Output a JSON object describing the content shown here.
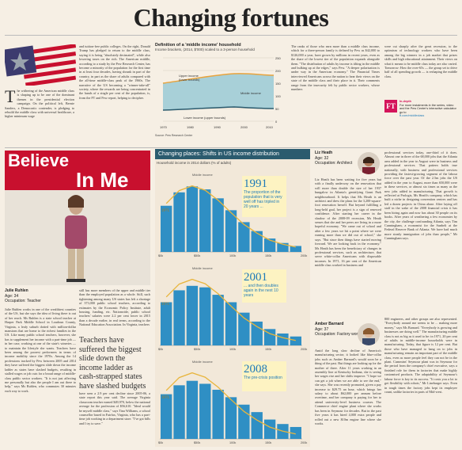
{
  "page": {
    "headline": "Changing fortunes"
  },
  "intro": {
    "drop_cap": "T",
    "text_col1": "he withering of the American middle class is shaping up to be one of the dominant themes in the presidential election campaign. On the political left, Bernie Sanders, a Democratic contender, is pledging to rebuild the middle class with universal healthcare, a higher minimum wage",
    "text_col2": "and tuition-free public colleges. On the right, Donald Trump has pledged to return to the middle class, saying it is being \"absolutely decimated\", while also lowering taxes on the rich. The American middle, according to a study by the Pew Research Center, has become a minority of the population for the first time in at least four decades, having shrunk in part of the country, in part as the share of adults compared with the all-time middle-class peak of the 1960s. The narrative of the US becoming a \"winner-take-all\" society, where the rewards are being concentrated in the hands of a single per cent of the population, is, from the FT and Pew report, helping to decipher."
  },
  "top_chart": {
    "title": "Definition of a 'middle income' household",
    "subtitle": "Income brackets, (2014, $'000) scaled to a 3-person household",
    "label_upper": "Upper income",
    "label_upper_sub": "(lower bounds)",
    "label_middle": "Middle income",
    "label_lower": "Lower income (upper bounds)",
    "x_ticks": [
      "1970",
      "1980",
      "1990",
      "2000",
      "2010"
    ],
    "y_ticks": [
      "250",
      "200",
      "150",
      "100",
      "50",
      "0"
    ],
    "source": "Source: Pew Research Center"
  },
  "top_text": {
    "col3": "The ranks of those who earn more than a middle class income, which for a three-person family is defined by Pew as $42,000 to $126,000 a year, have grown by millions in recent years, even as the share of the lowest tier of the population expands alongside them. \"The distribution of adults by income is tilting in the middle and bulking up at the edges,\" says Pew. \"A deeper polarization is under way in the American economy.\" The Financial Times interviewed Americans across the nation to hear their views on the state of the middle class and their place in it. Their comments range from the insecurity felt by public sector workers, whose numbers",
    "col4": "were cut sharply after the great recession, to the optimism of technology workers who have been among the big winners in a job market that prizes skills and high educational attainment. Their views on what it means to be middle class today are also varied. Tomorrow: How the over-65s — the group set to drive half of all spending growth — is reshaping the middle class."
  },
  "ft_promo": {
    "title": "In-depth",
    "text": "For more instalments in the series, video and the Pew Center's interactive calculator go to",
    "url": "ft.com/middleclass"
  },
  "teacher_photo": {
    "sign_line1": "Believe",
    "sign_line2": "In Me"
  },
  "person1": {
    "name": "Julie Ruhlen",
    "age": "Age: 34",
    "occupation": "Occupation: Teacher",
    "text": "Julie Ruhlen works in one of the wealthiest counties of the US, but she says the idea of living there is out of her reach. Ms Ruhlen is a state school teacher at Harper Park Middle School in Loudoun County, Virginia, a leafy suburb dotted with million-dollar mansions that are home to the richest families in the US. Like many public school teachers, however, she has to supplement her income with a part-time job — in her case, working at one of the state's wineries — to maintain the lifestyle she wants. Teachers have been among the poorest performers in terms of income mobility since the 1970s. Among the 14 professions tracked by Pew between 2005 and 2014 they have suffered the biggest slide down the income ladder as states have slashed budgets, resulting in stalled wages or job cuts for a broad range of middle-class public sector workers. \"It is not just affecting me personally but also the people I am out there to help,\" says Ms Ruhlen, who commutes 30 minutes each way to work."
  },
  "mid_text": {
    "col2a": "still has more members of the upper and middle tier than the employed population as a whole. Still, such tightening among many US states has left a shortage of 373,000 public school teachers, according to estimates by the Economic Policy Institute, adult housing, funding, etc. Nationwide, public school teachers' salaries were 2.2 per cent lower in 2015 than a decade earlier, in real terms, according to the National Education Association. In Virginia, teachers",
    "pull_quote": "Teachers have suffered the biggest slide down the income ladder as cash-strapped states have slashed budgets",
    "col2b": "have seen a 2.9 per cent decline since 2005-06, a state report this year said. The average Virginia classroom teacher earned $49,970, below the national average for the profession of $56,610. \"Ideal would be myself middle class,\" says Tina Williams, a school counsellor based in Fairfax, Virginia, who has a part-time job working in a department store. \"I've got bills and I try to save.\""
  },
  "chart_main": {
    "header": "Changing places: Shifts in US income distribution",
    "subtitle": "Household income in 2014 dollars (% of adults)",
    "panels": [
      {
        "year": "1991",
        "note": "The proportion of the population that is very well off has tripled in 20 years ..."
      },
      {
        "year": "2001",
        "note": "... and then doubles again in the next 10 years"
      },
      {
        "year": "2008",
        "note": "The pre-crisis position"
      }
    ],
    "label_middle": "Middle income",
    "label_1971": "1971",
    "x_ticks": [
      "$0k",
      "$50k",
      "100k",
      "150k",
      "200k"
    ]
  },
  "chart_data": {
    "type": "bar",
    "title": "Changing places: Shifts in US income distribution",
    "ylabel": "Household income in 2014 dollars (% of adults)",
    "xlabel": "",
    "categories": [
      "$0k",
      "$20k",
      "$40k",
      "$60k",
      "$80k",
      "$100k",
      "$120k",
      "$140k",
      "$160k",
      "$180k",
      "$200k"
    ],
    "series": [
      {
        "name": "1991",
        "values": [
          3.1,
          4.0,
          4.4,
          4.2,
          3.6,
          2.8,
          2.0,
          1.4,
          0.9,
          0.6,
          0.4
        ]
      },
      {
        "name": "2001",
        "values": [
          2.9,
          3.7,
          4.0,
          3.9,
          3.4,
          2.9,
          2.2,
          1.6,
          1.1,
          0.8,
          0.6
        ]
      },
      {
        "name": "2008",
        "values": [
          3.0,
          3.6,
          3.9,
          3.7,
          3.3,
          2.8,
          2.3,
          1.8,
          1.3,
          1.0,
          0.8
        ]
      }
    ]
  },
  "person2": {
    "name": "Liz Heath",
    "age": "Age: 32",
    "occupation": "Occupation: Architect",
    "text": "Liz Heath has been waiting for five years but with a finally underway on the renovation that will more than double the size of her 1937 bungalow in Atlanta's gentrifying Grant Park neighbourhood. It helps that Ms Heath is an architect and drew the plans for the 3,200-square-foot renovation herself. But beyond fulfilling a long-held goal, her project is a sign of renewed confidence. After starting her career in the shadow of the 2008-09 recession, Ms Heath senses that she and her peers are living in a more hopeful economy. \"We came out of school and after a few years we hit a point where we were earning more than we did out of school,\" she says. \"But since then things have started moving forward. We are looking back in the economy.\" Ms Heath has been the beneficiary of changes in professional services, such as architecture, that serve white-collar Americans with disposable incomes. In 1971, 16 per cent of the American middle class worked in business and"
  },
  "person3": {
    "name": "Amber Barnard",
    "age": "Age: 37",
    "occupation": "Occupation: Factory worker",
    "text": "Amid the long slow decline of America's manufacturing sector, it looked like blue-collar jobs such as Amber Barnard's would soon be a thing of the past. But things are looking up for the mother of three. After 11 years working in an assembly line at Kentucky Indiana, she is seeing her wages rise and her shifts improve. \"I hope we can get a job when we are able to see the end,\" she says. She was recently promoted, given a pay increase to $29.75 an hour, which brings her salary to about $62,000 per annum before overtime, and her company is paying for her to attend university-level business courses. The Commerce chief engine plant where she works has been in Seymour for decades. But in the past five years it has hired 4,000 extra people and rolled out a new $10m engine line where she works."
  },
  "right_text": {
    "col1": "professional services today, one-third of it does. Almost one in three of the 68,000 jobs that the Atlanta area added in the year to August were in business and professional services. That pattern holds true nationally, with business and professional services providing the fastest-growing segment of the labour force over the past year. Of the 2.5m jobs the US added in the year to August, more than 650,000 were in these services, or almost six times as many as the new jobs added in manufacturing. That growth is reflected at Prologis, Ms Heath's company, which has built a niche in designing convention centres and has led a dozen projects in China alone. After laying off staff in the wake of the 2008 financial crisis it has been hiring again and now has about 30 people on its books. After years of weathering a few economies by the city, the challenge confounding Atlanta, says Tim Cunningham, a economist for the Sunbelt at the Federal Reserve Bank of Atlanta. We have had much more steady immigration of jobs than people,\" Mr Cunningham says.",
    "col2": "800 engineers, and other groups are also represented. \"Everybody around me seems to be ... making more money,\" says Ms Barnard. \"Everybody is growing and businesses are doing well.\" The manufacturing middle class is not as big as it used to be: in 1971, 20 per cent of adults in middle-income households were in manufacturing. Today, that figure is 12 per cent. But those who have managed to hang on to jobs in manufacturing remain an important part of the middle class, even as more people feel they can not be in the plant. Cummins' Seymour plant was in Seymour for the period from the company's chief executive, says a finished role for them in factories that make highly customised products. The adaptability of Seymour's labour force is key to its success. \"It costs you a lot to get flexibility with robots,\" Mr Linebarger says. Even in tough times the factory jobs kept its employee count, unlike factories in parts of Mid-west."
  }
}
